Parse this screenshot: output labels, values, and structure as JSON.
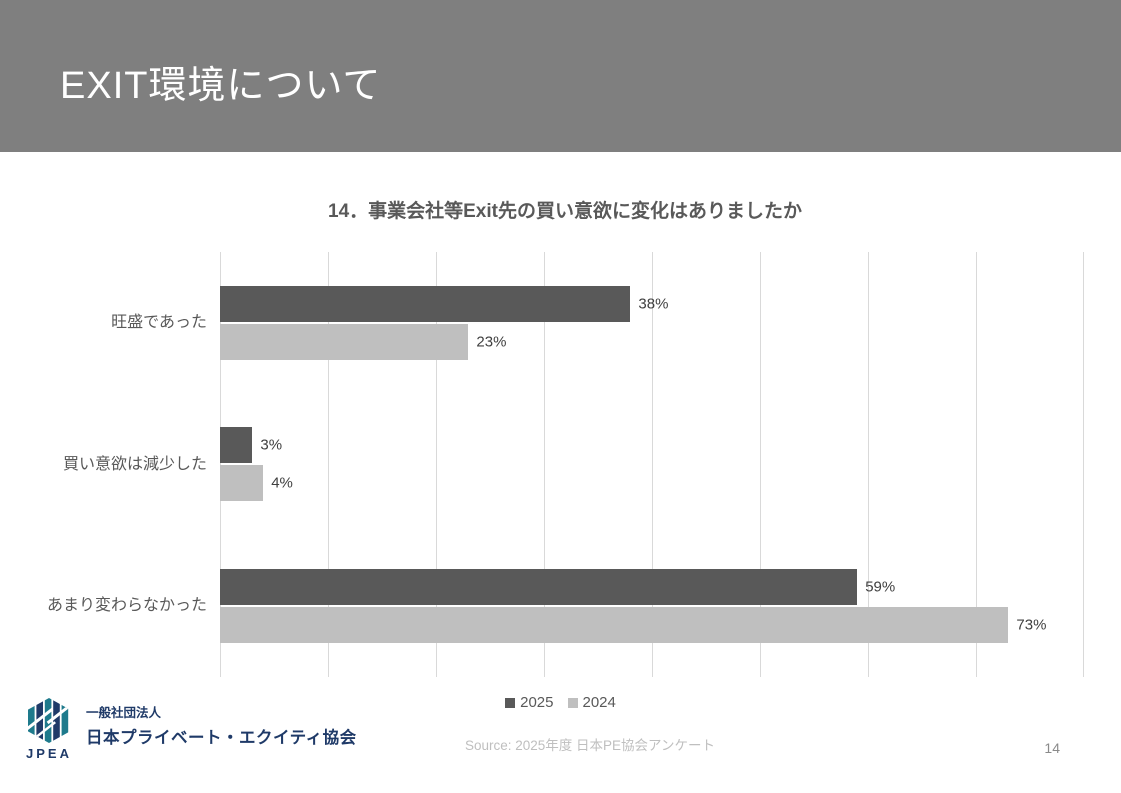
{
  "header": {
    "title": "EXIT環境について"
  },
  "chart_data": {
    "type": "bar",
    "orientation": "horizontal",
    "title": "14．事業会社等Exit先の買い意欲に変化はありましたか",
    "categories": [
      "旺盛であった",
      "買い意欲は減少した",
      "あまり変わらなかった"
    ],
    "series": [
      {
        "name": "2025",
        "color": "#595959",
        "values": [
          38,
          3,
          59
        ]
      },
      {
        "name": "2024",
        "color": "#bfbfbf",
        "values": [
          23,
          4,
          73
        ]
      }
    ],
    "value_suffix": "%",
    "xlim": [
      0,
      80
    ],
    "gridline_step": 10,
    "grid": "vertical",
    "gridline_color": "#d9d9d9",
    "legend_position": "bottom"
  },
  "footer": {
    "source": "Source: 2025年度 日本PE協会アンケート",
    "page_number": "14",
    "logo": {
      "acronym": "JPEA",
      "org_type": "一般社団法人",
      "org_name": "日本プライベート・エクイティ協会",
      "colors": {
        "navy": "#1f3a68",
        "teal": "#1e7a8c"
      }
    }
  }
}
